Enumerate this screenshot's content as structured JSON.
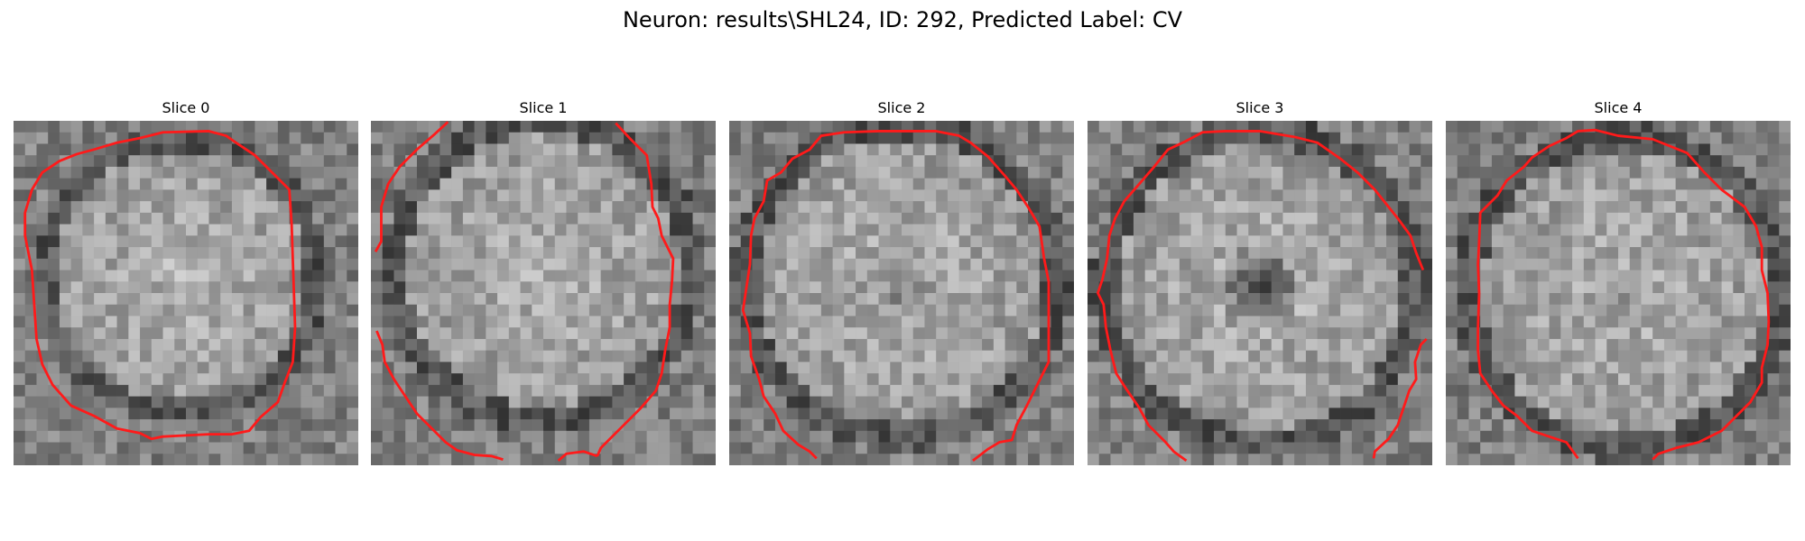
{
  "figure": {
    "title": "Neuron: results\\SHL24, ID: 292, Predicted Label: CV",
    "contour_color": "#ff1a1a",
    "colormap": "gray"
  },
  "slices": [
    {
      "title": "Slice 0",
      "pattern": "filled-soma",
      "contour": "closed"
    },
    {
      "title": "Slice 1",
      "pattern": "filled-soma",
      "contour": "open-top-and-bottom"
    },
    {
      "title": "Slice 2",
      "pattern": "faint-dark-center",
      "contour": "open-bottom"
    },
    {
      "title": "Slice 3",
      "pattern": "dark-nucleus-center",
      "contour": "open-bottom"
    },
    {
      "title": "Slice 4",
      "pattern": "dark-ring-halo",
      "contour": "open-bottom"
    }
  ]
}
